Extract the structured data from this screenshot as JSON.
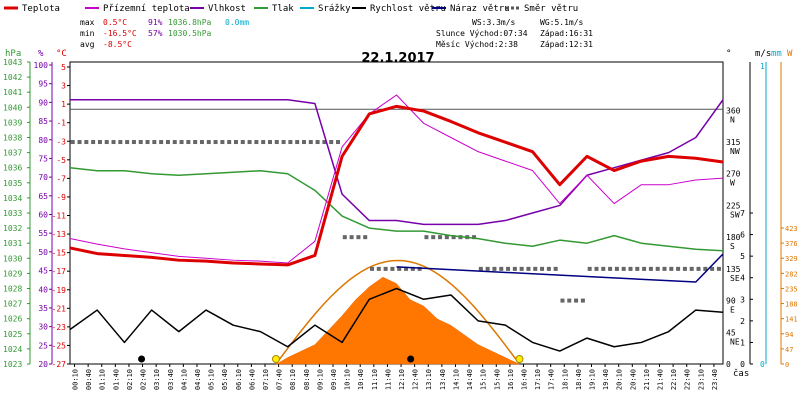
{
  "chart_data": {
    "type": "line",
    "title": "22.1.2017",
    "legend": [
      {
        "name": "Teplota",
        "color": "#dd0000"
      },
      {
        "name": "Přízemní teplota",
        "color": "#cc00cc"
      },
      {
        "name": "Vlhkost",
        "color": "#7700aa"
      },
      {
        "name": "Tlak",
        "color": "#339933"
      },
      {
        "name": "Srážky",
        "color": "#00aacc"
      },
      {
        "name": "Rychlost větru",
        "color": "#000000"
      },
      {
        "name": "Náraz větru",
        "color": "#000080"
      },
      {
        "name": "Směr větru",
        "color": "#555555"
      }
    ],
    "stats": {
      "max_label": "max",
      "max_temp": "0.5°C",
      "max_hum": "91%",
      "max_press": "1036.8hPa",
      "max_rain": "0.0mm",
      "min_label": "min",
      "min_temp": "-16.5°C",
      "min_hum": "57%",
      "min_press": "1030.5hPa",
      "avg_label": "avg",
      "avg_temp": "-8.5°C",
      "ws": "WS:3.3m/s",
      "wg": "WG:5.1m/s",
      "sun": "Slunce Východ:07:34",
      "sun_set": "Západ:16:31",
      "moon": "Měsíc  Východ:2:38",
      "moon_set": "Západ:12:31"
    },
    "axes": {
      "hpa_label": "hPa",
      "pct_label": "%",
      "c_label": "°C",
      "deg_label": "°",
      "ms_label": "m/s",
      "mm_label": "mm",
      "w_label": "W",
      "x_label": "čas",
      "hpa_ticks": [
        "1043",
        "1042",
        "1041",
        "1040",
        "1039",
        "1038",
        "1037",
        "1036",
        "1035",
        "1034",
        "1033",
        "1032",
        "1031",
        "1030",
        "1029",
        "1028",
        "1027",
        "1026",
        "1025",
        "1024",
        "1023"
      ],
      "pct_ticks": [
        "100",
        "95",
        "90",
        "85",
        "80",
        "75",
        "70",
        "65",
        "60",
        "55",
        "50",
        "45",
        "40",
        "35",
        "30",
        "25",
        "20"
      ],
      "c_ticks": [
        "5",
        "3",
        "1",
        "-1",
        "-3",
        "-5",
        "-7",
        "-9",
        "-11",
        "-13",
        "-15",
        "-17",
        "-19",
        "-21",
        "-23",
        "-25",
        "-27"
      ],
      "deg_ticks": [
        "360",
        "315",
        "270",
        "225",
        "180",
        "135",
        "90",
        "45",
        "0"
      ],
      "dir_ticks": [
        "N",
        "NW",
        "W",
        "SW",
        "S",
        "SE",
        "E",
        "NE",
        ""
      ],
      "ms_ticks": [
        "7",
        "6",
        "5",
        "4",
        "3",
        "2",
        "1",
        "0"
      ],
      "mm_ticks": [
        "1",
        "0"
      ],
      "w_ticks": [
        "423",
        "376",
        "329",
        "282",
        "235",
        "188",
        "141",
        "94",
        "47",
        "0"
      ],
      "time_ticks": [
        "00:10",
        "00:40",
        "01:10",
        "01:40",
        "02:10",
        "02:40",
        "03:10",
        "03:40",
        "04:10",
        "04:40",
        "05:10",
        "05:40",
        "06:10",
        "06:40",
        "07:10",
        "07:40",
        "08:10",
        "08:40",
        "09:10",
        "09:40",
        "10:10",
        "10:40",
        "11:10",
        "11:40",
        "12:10",
        "12:40",
        "13:10",
        "13:40",
        "14:10",
        "14:40",
        "15:10",
        "15:40",
        "16:10",
        "16:40",
        "17:10",
        "17:40",
        "18:10",
        "18:40",
        "19:10",
        "19:40",
        "20:10",
        "20:40",
        "21:10",
        "21:40",
        "22:10",
        "22:40",
        "23:10",
        "23:40"
      ]
    },
    "ylim_temp": [
      -27,
      5
    ],
    "hours": [
      0,
      1,
      2,
      3,
      4,
      5,
      6,
      7,
      8,
      9,
      10,
      11,
      12,
      13,
      14,
      15,
      16,
      17,
      18,
      19,
      20,
      21,
      22,
      23,
      24
    ],
    "temperature": [
      -14.7,
      -15.3,
      -15.5,
      -15.7,
      -16.0,
      -16.1,
      -16.3,
      -16.4,
      -16.5,
      -15.5,
      -5.0,
      -0.5,
      0.3,
      -0.2,
      -1.3,
      -2.5,
      -3.5,
      -4.5,
      -8.0,
      -5.0,
      -6.5,
      -5.5,
      -5.0,
      -5.2,
      -5.6
    ],
    "ground_temperature": [
      -13.7,
      -14.3,
      -14.8,
      -15.2,
      -15.6,
      -15.8,
      -16.0,
      -16.1,
      -16.3,
      -14.0,
      -4.0,
      -0.5,
      1.5,
      -1.5,
      -3.0,
      -4.5,
      -5.5,
      -6.5,
      -10.0,
      -7.0,
      -10.0,
      -8.0,
      -8.0,
      -7.5,
      -7.3
    ],
    "humidity": [
      90,
      90,
      90,
      90,
      90,
      90,
      90,
      90,
      90,
      89,
      65,
      58,
      58,
      57,
      57,
      57,
      58,
      60,
      62,
      70,
      72,
      74,
      76,
      80,
      90
    ],
    "pressure": [
      1036.0,
      1035.8,
      1035.8,
      1035.6,
      1035.5,
      1035.6,
      1035.7,
      1035.8,
      1035.6,
      1034.5,
      1032.8,
      1032.0,
      1031.8,
      1031.8,
      1031.5,
      1031.3,
      1031.0,
      1030.8,
      1031.2,
      1031.0,
      1031.5,
      1031.0,
      1030.8,
      1030.6,
      1030.5
    ],
    "wind_speed": [
      1.6,
      2.5,
      1.0,
      2.5,
      1.5,
      2.5,
      1.8,
      1.5,
      0.8,
      1.8,
      1.0,
      3.0,
      3.5,
      3.0,
      3.2,
      2.0,
      1.8,
      1.0,
      0.6,
      1.2,
      0.8,
      1.0,
      1.5,
      2.5,
      2.4
    ],
    "wind_gust": [
      null,
      null,
      null,
      null,
      null,
      null,
      null,
      null,
      null,
      null,
      null,
      null,
      4.5,
      null,
      null,
      null,
      null,
      null,
      null,
      null,
      null,
      null,
      null,
      3.8,
      5.1
    ],
    "wind_direction": [
      315,
      315,
      315,
      315,
      315,
      315,
      315,
      315,
      315,
      315,
      180,
      135,
      135,
      180,
      180,
      135,
      135,
      135,
      90,
      135,
      135,
      135,
      135,
      135,
      135
    ],
    "solar_radiation_time": [
      7.6,
      8.0,
      9.0,
      10.0,
      10.5,
      11.0,
      11.5,
      12.0,
      12.5,
      13.0,
      13.5,
      14.0,
      14.5,
      15.0,
      16.0,
      16.5
    ],
    "solar_radiation": [
      0,
      20,
      60,
      150,
      200,
      240,
      270,
      250,
      200,
      180,
      140,
      120,
      90,
      60,
      20,
      0
    ],
    "solar_max_theoretical_peak": 322,
    "sunrise_hour": 7.57,
    "sunset_hour": 16.52
  }
}
